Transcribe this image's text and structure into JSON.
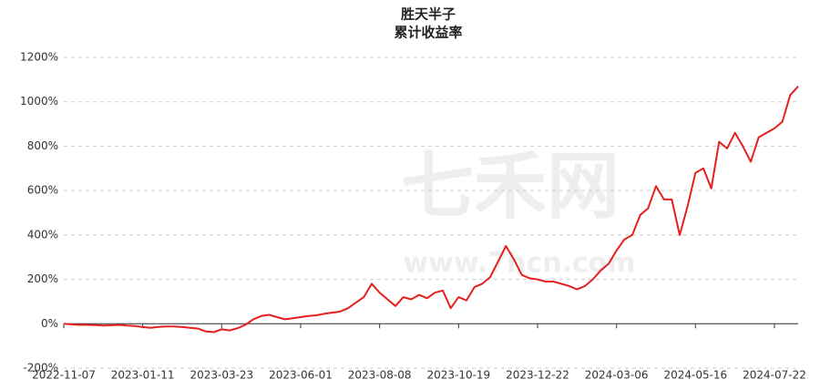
{
  "chart_data": {
    "type": "line",
    "title": [
      "胜天半子",
      "累计收益率"
    ],
    "watermark": [
      "七禾网",
      "www.7hcn.com"
    ],
    "categories": [
      "2022-11-07",
      null,
      null,
      null,
      null,
      null,
      null,
      null,
      null,
      null,
      "2023-01-11",
      null,
      null,
      null,
      null,
      null,
      null,
      null,
      null,
      null,
      "2023-03-23",
      null,
      null,
      null,
      null,
      null,
      null,
      null,
      null,
      null,
      "2023-06-01",
      null,
      null,
      null,
      null,
      null,
      null,
      null,
      null,
      null,
      "2023-08-08",
      null,
      null,
      null,
      null,
      null,
      null,
      null,
      null,
      null,
      "2023-10-19",
      null,
      null,
      null,
      null,
      null,
      null,
      null,
      null,
      null,
      "2023-12-22",
      null,
      null,
      null,
      null,
      null,
      null,
      null,
      null,
      null,
      "2024-03-06",
      null,
      null,
      null,
      null,
      null,
      null,
      null,
      null,
      null,
      "2024-05-16",
      null,
      null,
      null,
      null,
      null,
      null,
      null,
      null,
      null,
      "2024-07-22",
      null,
      null,
      null
    ],
    "values": [
      0,
      -3,
      -5,
      -5,
      -6,
      -8,
      -7,
      -5,
      -8,
      -10,
      -15,
      -18,
      -14,
      -12,
      -12,
      -15,
      -18,
      -22,
      -35,
      -38,
      -25,
      -30,
      -20,
      -5,
      20,
      35,
      40,
      30,
      20,
      25,
      30,
      35,
      38,
      45,
      50,
      55,
      70,
      95,
      120,
      180,
      140,
      110,
      80,
      120,
      110,
      130,
      115,
      140,
      150,
      70,
      120,
      105,
      165,
      180,
      210,
      280,
      350,
      290,
      220,
      205,
      200,
      190,
      190,
      180,
      170,
      155,
      170,
      200,
      240,
      270,
      330,
      380,
      400,
      490,
      520,
      620,
      560,
      560,
      400,
      530,
      680,
      700,
      610,
      820,
      790,
      860,
      800,
      730,
      840,
      860,
      880,
      910,
      1030,
      1070
    ],
    "color": "#e5201f",
    "ylim": [
      -200,
      1200
    ],
    "yticks": [
      {
        "value": -200,
        "label": "-200%"
      },
      {
        "value": 0,
        "label": "0%"
      },
      {
        "value": 200,
        "label": "200%"
      },
      {
        "value": 400,
        "label": "400%"
      },
      {
        "value": 600,
        "label": "600%"
      },
      {
        "value": 800,
        "label": "800%"
      },
      {
        "value": 1000,
        "label": "1000%"
      },
      {
        "value": 1200,
        "label": "1200%"
      }
    ],
    "grid": true
  }
}
